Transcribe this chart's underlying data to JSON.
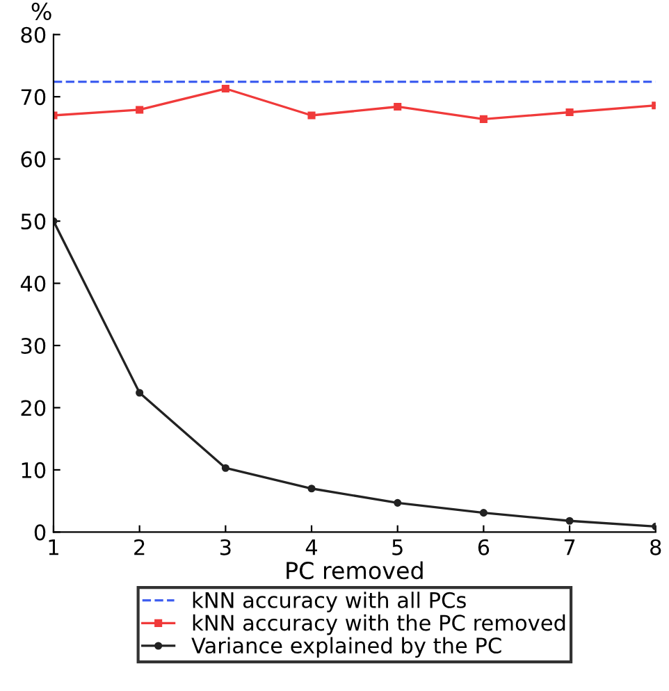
{
  "chart_data": {
    "type": "line",
    "xlabel": "PC removed",
    "ylabel": "%",
    "x": [
      1,
      2,
      3,
      4,
      5,
      6,
      7,
      8
    ],
    "series": [
      {
        "name": "kNN accuracy with all PCs",
        "color": "#3f5ff0",
        "values": [
          72.4,
          72.4,
          72.4,
          72.4,
          72.4,
          72.4,
          72.4,
          72.4
        ],
        "line_style": "dashed",
        "marker": "none"
      },
      {
        "name": "kNN accuracy with the PC removed",
        "color": "#f03a3a",
        "values": [
          67.0,
          67.9,
          71.3,
          67.0,
          68.4,
          66.4,
          67.5,
          68.6
        ],
        "line_style": "solid",
        "marker": "square"
      },
      {
        "name": "Variance explained by the PC",
        "color": "#222222",
        "values": [
          50.0,
          22.4,
          10.3,
          7.0,
          4.7,
          3.1,
          1.8,
          0.9
        ],
        "line_style": "solid",
        "marker": "circle"
      }
    ],
    "xlim": [
      1,
      8
    ],
    "xticks": [
      1,
      2,
      3,
      4,
      5,
      6,
      7,
      8
    ],
    "ylim": [
      0,
      80
    ],
    "yticks": [
      0,
      10,
      20,
      30,
      40,
      50,
      60,
      70,
      80
    ],
    "grid": false,
    "legend": "bottom"
  }
}
